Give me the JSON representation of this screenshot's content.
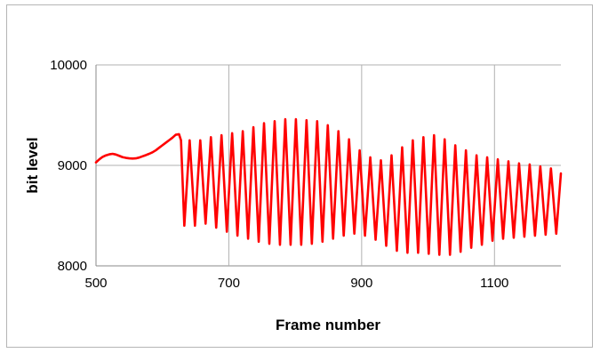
{
  "chart_data": {
    "type": "line",
    "title": "",
    "xlabel": "Frame number",
    "ylabel": "bit level",
    "xlim": [
      500,
      1200
    ],
    "ylim": [
      8000,
      10000
    ],
    "x_ticks": [
      500,
      700,
      900,
      1100
    ],
    "x_tick_labels": [
      "500",
      "700",
      "900",
      "1100"
    ],
    "y_ticks": [
      8000,
      9000,
      10000
    ],
    "y_tick_labels": [
      "8000",
      "9000",
      "10000"
    ],
    "grid": true,
    "legend": "none",
    "series": [
      {
        "color": "#ff0000",
        "x": [
          500,
          505,
          510,
          515,
          520,
          525,
          530,
          535,
          540,
          545,
          550,
          555,
          560,
          565,
          570,
          575,
          580,
          585,
          590,
          595,
          600,
          605,
          610,
          615,
          620,
          625,
          628,
          633,
          641,
          649,
          657,
          665,
          673,
          681,
          689,
          697,
          705,
          713,
          721,
          729,
          737,
          745,
          753,
          761,
          769,
          777,
          785,
          793,
          801,
          809,
          817,
          825,
          833,
          841,
          849,
          857,
          865,
          873,
          881,
          889,
          897,
          905,
          913,
          921,
          929,
          937,
          945,
          953,
          961,
          969,
          977,
          985,
          993,
          1001,
          1009,
          1017,
          1025,
          1033,
          1041,
          1049,
          1057,
          1065,
          1073,
          1081,
          1089,
          1097,
          1105,
          1113,
          1121,
          1129,
          1137,
          1145,
          1153,
          1161,
          1169,
          1177,
          1185,
          1193,
          1200
        ],
        "y": [
          9030,
          9060,
          9085,
          9100,
          9110,
          9115,
          9108,
          9095,
          9082,
          9075,
          9070,
          9068,
          9070,
          9078,
          9090,
          9102,
          9115,
          9130,
          9150,
          9175,
          9200,
          9225,
          9250,
          9275,
          9305,
          9310,
          9250,
          8400,
          9250,
          8400,
          9250,
          8420,
          9280,
          8380,
          9300,
          8340,
          9320,
          8300,
          9340,
          8270,
          9380,
          8240,
          9420,
          8220,
          9440,
          8210,
          9460,
          8210,
          9460,
          8210,
          9450,
          8220,
          9440,
          8240,
          9400,
          8270,
          9340,
          8300,
          9260,
          8320,
          9150,
          8300,
          9080,
          8260,
          9050,
          8200,
          9100,
          8150,
          9180,
          8130,
          9250,
          8130,
          9280,
          8120,
          9300,
          8110,
          9260,
          8110,
          9200,
          8140,
          9150,
          8180,
          9100,
          8210,
          9080,
          8250,
          9060,
          8270,
          9040,
          8280,
          9020,
          8290,
          9010,
          8300,
          8990,
          8310,
          8970,
          8320,
          8920
        ]
      }
    ]
  }
}
